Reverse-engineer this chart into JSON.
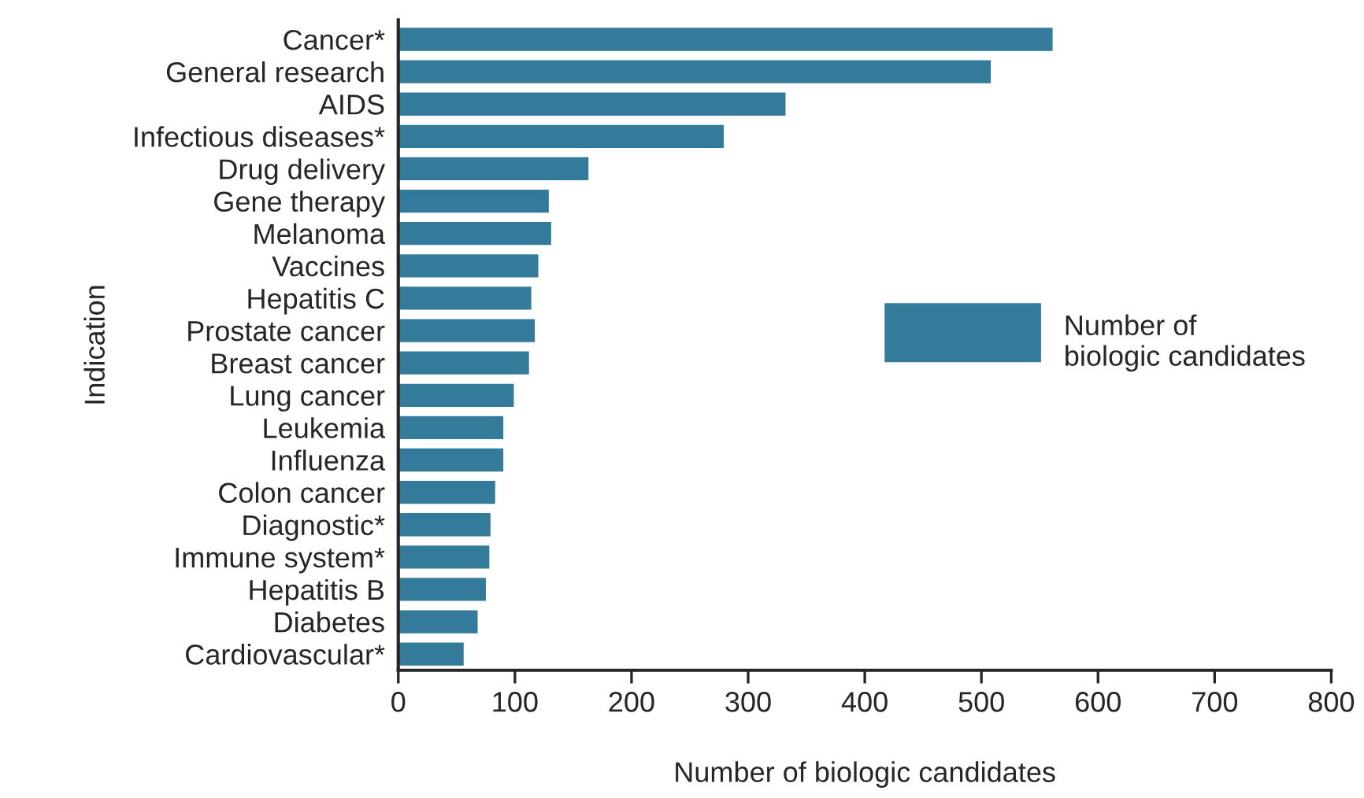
{
  "chart_data": {
    "type": "bar",
    "orientation": "horizontal",
    "xlabel": "Number of biologic candidates",
    "ylabel": "Indication",
    "categories": [
      "Cancer*",
      "General research",
      "AIDS",
      "Infectious diseases*",
      "Drug delivery",
      "Gene therapy",
      "Melanoma",
      "Vaccines",
      "Hepatitis C",
      "Prostate cancer",
      "Breast cancer",
      "Lung cancer",
      "Leukemia",
      "Influenza",
      "Colon cancer",
      "Diagnostic*",
      "Immune system*",
      "Hepatitis B",
      "Diabetes",
      "Cardiovascular*"
    ],
    "series": [
      {
        "name": "Number of\nbiologic candidates",
        "color": "#347a9a",
        "values": [
          562,
          509,
          333,
          280,
          164,
          130,
          132,
          121,
          115,
          118,
          113,
          100,
          91,
          91,
          84,
          80,
          79,
          76,
          69,
          57
        ]
      }
    ],
    "xlim": [
      0,
      800
    ],
    "xticks": [
      0,
      100,
      200,
      300,
      400,
      500,
      600,
      700,
      800
    ],
    "grid": false,
    "legend": "right"
  }
}
